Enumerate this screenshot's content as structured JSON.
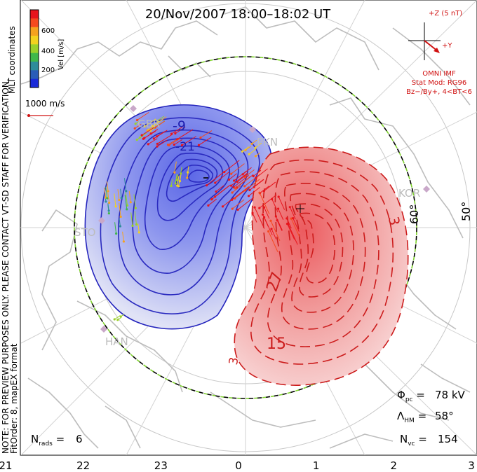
{
  "title": "20/Nov/2007 18:00–18:02 UT",
  "colorbar": {
    "label": "Vel [m/s]",
    "ticks": [
      "600",
      "400",
      "200"
    ],
    "colors": [
      "#e8141c",
      "#f5491e",
      "#f5a21e",
      "#f3d21e",
      "#9bd12a",
      "#3fb84a",
      "#2e8c9a",
      "#2a5cb8",
      "#1a2ad8"
    ]
  },
  "side_labels": {
    "mlt": "MLT coordinates",
    "notice": "NOTE: FOR PREVIEW PURPOSES ONLY. PLEASE CONTACT VT-SD STAFF FOR VERIFICATION.",
    "fit": "FitOrder: 8, mapEX format"
  },
  "reference_vector": "1000 m/s",
  "imf": {
    "z_label": "+Z (5 nT)",
    "y_label": "+Y",
    "source": "OMNI IMF",
    "stat_mod": "Stat Mod: RG96",
    "condition": "Bz−/By+, 4<BT<6"
  },
  "latitudes": [
    "50°",
    "60°"
  ],
  "stations": [
    {
      "name": "PKN"
    },
    {
      "name": "KOR"
    },
    {
      "name": "STO"
    },
    {
      "name": "HAN"
    },
    {
      "name": "GBR"
    }
  ],
  "contour_labels": {
    "negative": [
      "-9",
      "-21"
    ],
    "positive": [
      "3",
      "27",
      "15",
      "3"
    ]
  },
  "stats": {
    "phi_pc": "78 kV",
    "lambda_hm": "58°",
    "n_vc": "154",
    "n_rads": "6"
  },
  "chart_data": {
    "type": "contour",
    "x_tick_labels": [
      "21",
      "22",
      "23",
      "0",
      "1",
      "2",
      "3"
    ],
    "xlabel": "",
    "ylabel": "",
    "cross_polar_cap_potential_kV": 78,
    "heppner_maynard_boundary_deg": 58,
    "num_vectors": 154,
    "num_radars": 6,
    "velocity_range_m_s": [
      0,
      700
    ]
  }
}
